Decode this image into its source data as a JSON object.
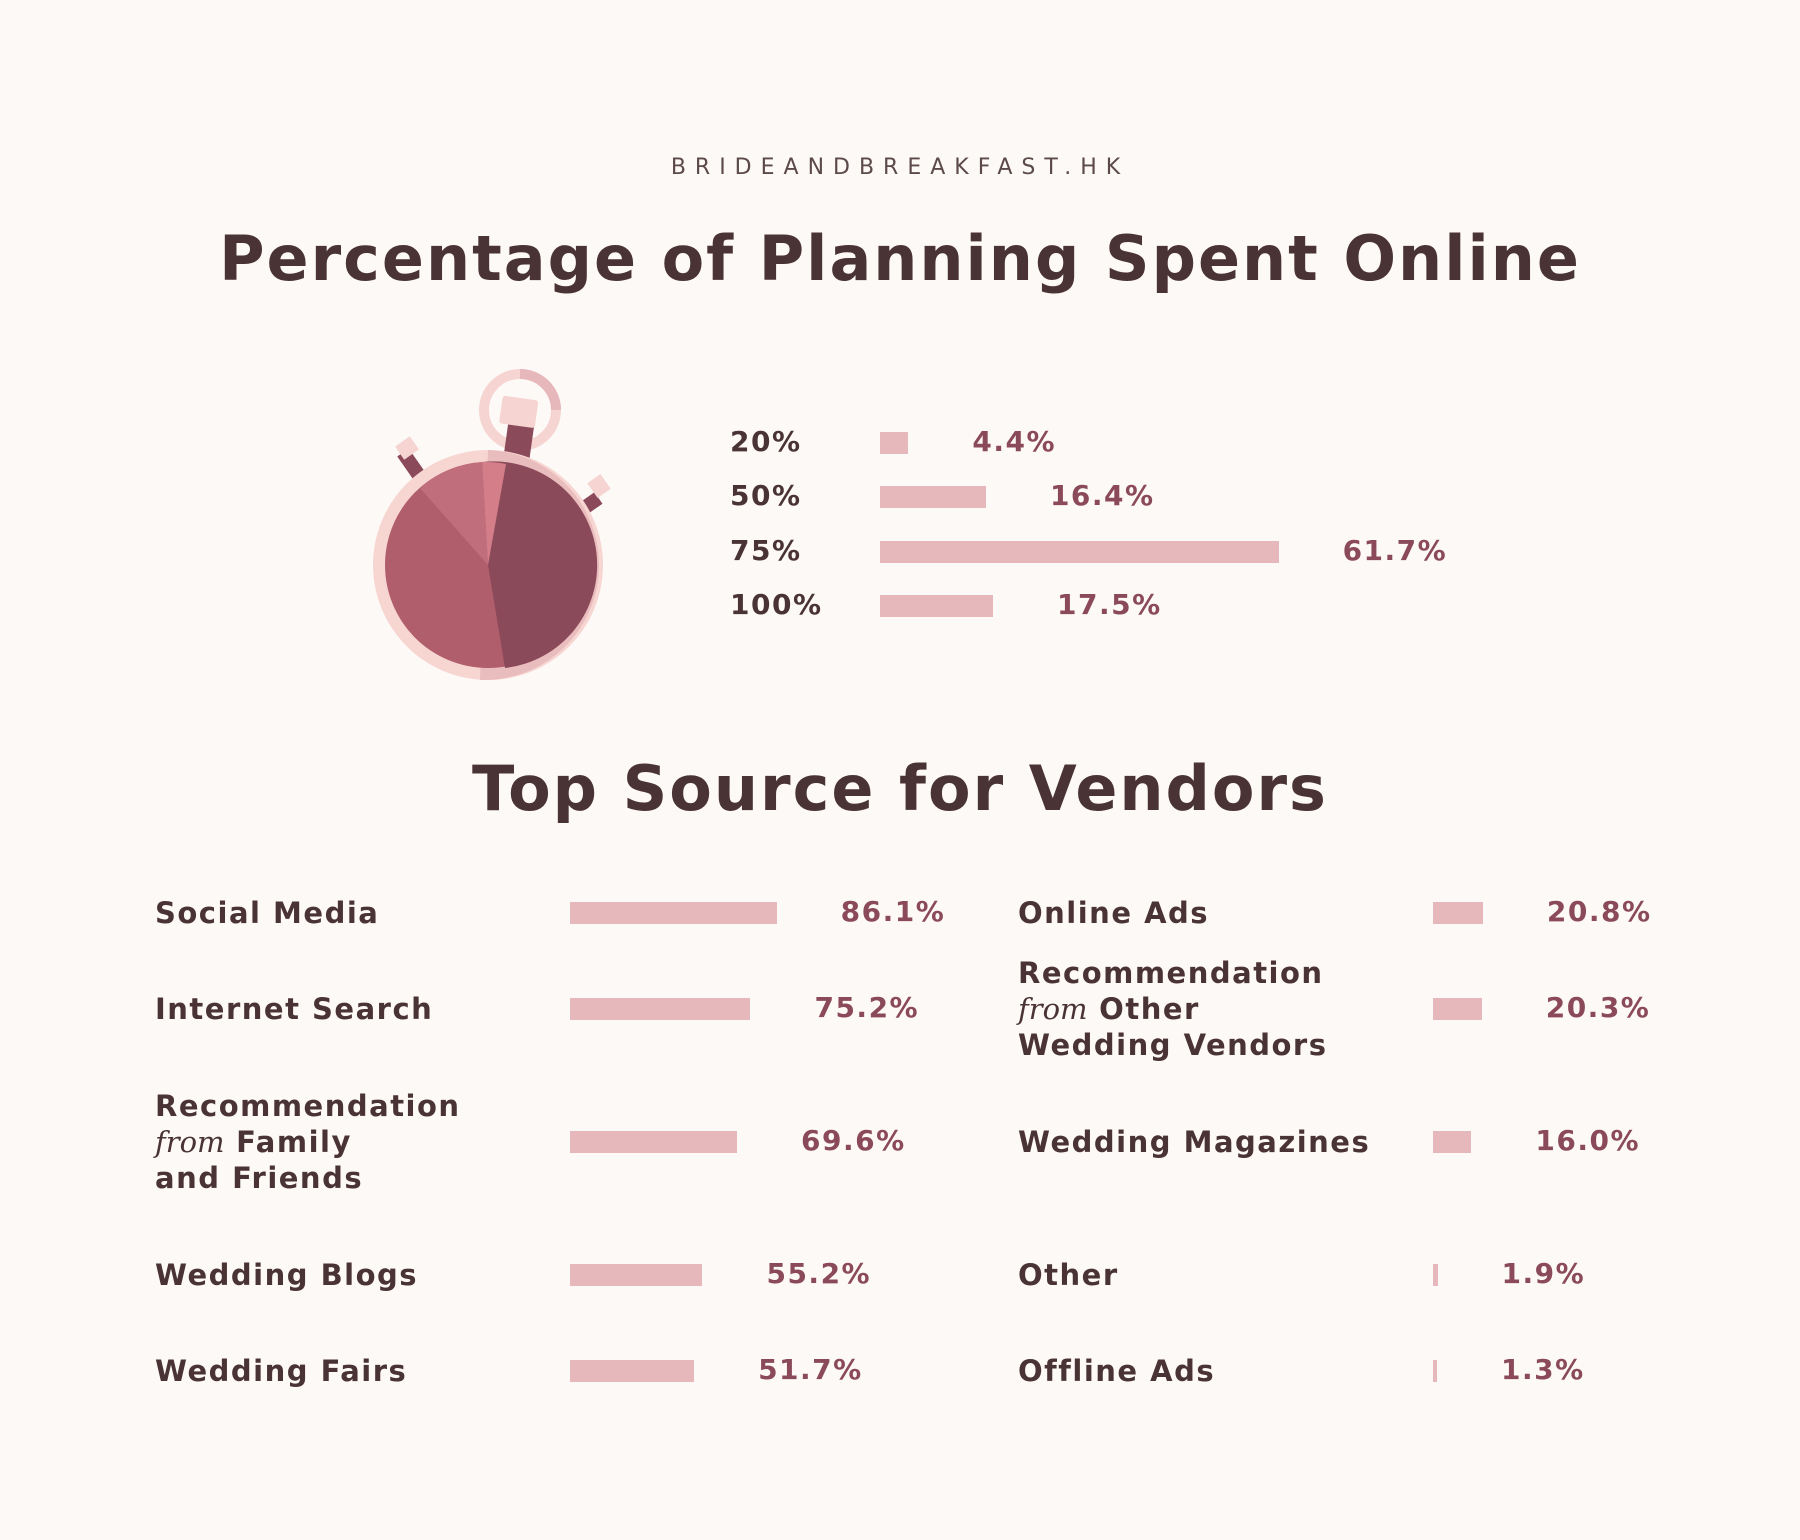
{
  "site": "BRIDEANDBREAKFAST.HK",
  "chart_data": [
    {
      "type": "bar",
      "orientation": "horizontal",
      "title": "Percentage of Planning Spent Online",
      "categories": [
        "20%",
        "50%",
        "75%",
        "100%"
      ],
      "values": [
        4.4,
        16.4,
        61.7,
        17.5
      ],
      "value_labels": [
        "4.4%",
        "16.4%",
        "61.7%",
        "17.5%"
      ],
      "color": "#e6b8bb"
    },
    {
      "type": "bar",
      "orientation": "horizontal",
      "title": "Top Source for Vendors",
      "categories": [
        {
          "line1": "Social Media"
        },
        {
          "line1": "Internet Search"
        },
        {
          "line1": "Recommendation",
          "from": "from",
          "line2": "Family",
          "line3": "and Friends"
        },
        {
          "line1": "Wedding Blogs"
        },
        {
          "line1": "Wedding Fairs"
        },
        {
          "line1": "Online Ads"
        },
        {
          "line1": "Recommendation",
          "from": "from",
          "line2": "Other",
          "line3": "Wedding Vendors"
        },
        {
          "line1": "Wedding Magazines"
        },
        {
          "line1": "Other"
        },
        {
          "line1": "Offline Ads"
        }
      ],
      "values": [
        86.1,
        75.2,
        69.6,
        55.2,
        51.7,
        20.8,
        20.3,
        16.0,
        1.9,
        1.3
      ],
      "value_labels": [
        "86.1%",
        "75.2%",
        "69.6%",
        "55.2%",
        "51.7%",
        "20.8%",
        "20.3%",
        "16.0%",
        "1.9%",
        "1.3%"
      ],
      "color": "#e6b8bb"
    }
  ]
}
